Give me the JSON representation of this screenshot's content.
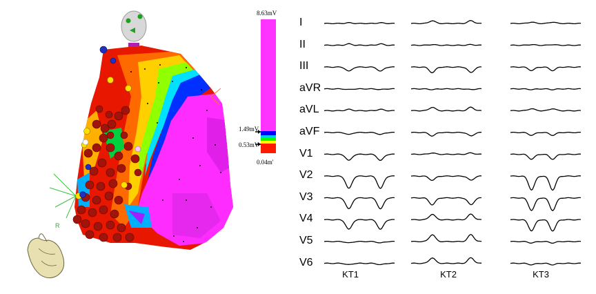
{
  "colorbar": {
    "max_label": "8.63mV",
    "upper_threshold_label": "1.49mV",
    "lower_threshold_label": "0.53mV",
    "min_label": "0.04m'",
    "colors": [
      "#ff00ff",
      "#0000ff",
      "#00c0ff",
      "#00ff00",
      "#ffff00",
      "#ff0000"
    ]
  },
  "map": {
    "orientation_label": "R",
    "point_colors": {
      "red": "#a0140c",
      "yellow": "#ffe000",
      "blue": "#2030c0",
      "white": "#ffffff"
    }
  },
  "ecg": {
    "leads": [
      "I",
      "II",
      "III",
      "aVR",
      "aVL",
      "aVF",
      "V1",
      "V2",
      "V3",
      "V4",
      "V5",
      "V6"
    ],
    "columns": [
      "KT1",
      "KT2",
      "KT3"
    ]
  }
}
